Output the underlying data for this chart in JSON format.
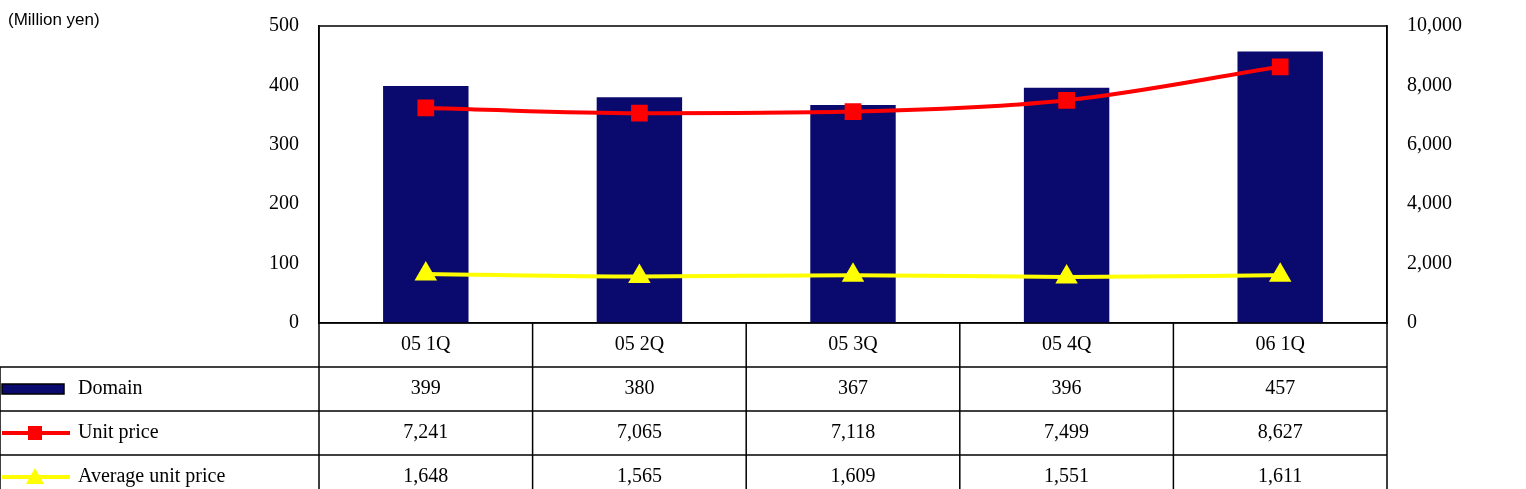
{
  "chart_data": {
    "type": "bar",
    "annotations": [
      "(Million yen)"
    ],
    "categories": [
      "05 1Q",
      "05 2Q",
      "05 3Q",
      "05 4Q",
      "06 1Q"
    ],
    "series": [
      {
        "name": "Domain",
        "color": "#0a0a6e",
        "values": [
          399,
          380,
          367,
          396,
          457
        ],
        "value_labels": [
          "399",
          "380",
          "367",
          "396",
          "457"
        ]
      },
      {
        "name": "Unit price",
        "type": "line",
        "axis": "y2",
        "marker": "square",
        "color": "#ff0000",
        "values": [
          7241,
          7065,
          7118,
          7499,
          8627
        ],
        "value_labels": [
          "7,241",
          "7,065",
          "7,118",
          "7,499",
          "8,627"
        ]
      },
      {
        "name": "Average unit price",
        "type": "line",
        "axis": "y2",
        "marker": "triangle",
        "color": "#ffff00",
        "values": [
          1648,
          1565,
          1609,
          1551,
          1611
        ],
        "value_labels": [
          "1,648",
          "1,565",
          "1,609",
          "1,551",
          "1,611"
        ]
      }
    ],
    "ylim": [
      0,
      500
    ],
    "yticks": [
      0,
      100,
      200,
      300,
      400,
      500
    ],
    "y2lim": [
      0,
      10000
    ],
    "y2ticks": [
      0,
      {
        "value": 2000,
        "label": "2,000"
      },
      {
        "value": 4000,
        "label": "4,000"
      },
      {
        "value": 6000,
        "label": "6,000"
      },
      {
        "value": 8000,
        "label": "8,000"
      },
      {
        "value": 10000,
        "label": "10,000"
      }
    ],
    "legend": "bottom",
    "grid": false
  }
}
